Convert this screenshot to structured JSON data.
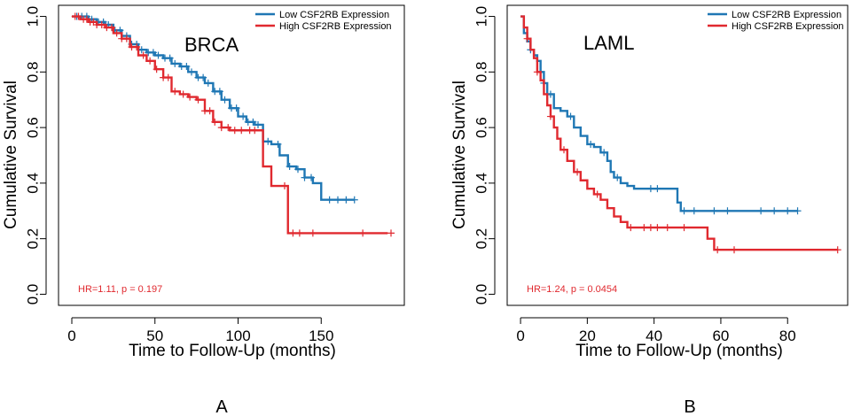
{
  "chart_data": [
    {
      "type": "line",
      "panel_label": "A",
      "title": "BRCA",
      "xlabel": "Time to Follow-Up (months)",
      "ylabel": "Cumulative Survival",
      "xlim": [
        -8,
        200
      ],
      "ylim": [
        -0.04,
        1.04
      ],
      "xticks": [
        0,
        50,
        100,
        150
      ],
      "yticks": [
        0.0,
        0.2,
        0.4,
        0.6,
        0.8,
        1.0
      ],
      "ytick_labels": [
        "0.0",
        "0.2",
        "0.4",
        "0.6",
        "0.8",
        "1.0"
      ],
      "legend_position": "top-right",
      "annotation": "HR=1.11, p = 0.197",
      "series": [
        {
          "name": "Low CSF2RB Expression",
          "color": "#1f77b4",
          "x": [
            0,
            5,
            10,
            15,
            20,
            25,
            30,
            35,
            40,
            45,
            50,
            55,
            60,
            65,
            70,
            75,
            80,
            85,
            90,
            95,
            100,
            105,
            110,
            115,
            120,
            125,
            130,
            135,
            140,
            145,
            150,
            160,
            170
          ],
          "y": [
            1.0,
            1.0,
            0.99,
            0.98,
            0.97,
            0.95,
            0.93,
            0.9,
            0.88,
            0.87,
            0.86,
            0.85,
            0.83,
            0.82,
            0.8,
            0.78,
            0.76,
            0.73,
            0.7,
            0.67,
            0.64,
            0.62,
            0.61,
            0.55,
            0.54,
            0.5,
            0.46,
            0.45,
            0.42,
            0.4,
            0.34,
            0.34,
            0.34
          ],
          "censored_x": [
            3,
            6,
            9,
            12,
            16,
            19,
            22,
            26,
            29,
            33,
            36,
            39,
            42,
            46,
            49,
            52,
            56,
            59,
            62,
            66,
            69,
            72,
            76,
            79,
            82,
            86,
            89,
            92,
            96,
            99,
            103,
            106,
            109,
            112,
            118,
            124,
            131,
            136,
            140,
            144,
            155,
            160,
            165,
            170
          ]
        },
        {
          "name": "High CSF2RB Expression",
          "color": "#e0292f",
          "x": [
            0,
            5,
            10,
            15,
            20,
            25,
            30,
            35,
            40,
            45,
            50,
            55,
            60,
            65,
            70,
            75,
            80,
            85,
            90,
            95,
            100,
            105,
            110,
            115,
            120,
            125,
            130,
            140,
            150,
            170,
            190
          ],
          "y": [
            1.0,
            0.99,
            0.98,
            0.97,
            0.96,
            0.94,
            0.92,
            0.89,
            0.86,
            0.84,
            0.81,
            0.78,
            0.73,
            0.72,
            0.71,
            0.7,
            0.66,
            0.62,
            0.6,
            0.59,
            0.59,
            0.59,
            0.59,
            0.46,
            0.39,
            0.39,
            0.22,
            0.22,
            0.22,
            0.22,
            0.22
          ],
          "censored_x": [
            2,
            4,
            7,
            9,
            11,
            13,
            15,
            18,
            21,
            24,
            27,
            30,
            33,
            36,
            39,
            43,
            47,
            51,
            55,
            58,
            62,
            67,
            71,
            76,
            80,
            83,
            86,
            90,
            94,
            98,
            102,
            107,
            110,
            128,
            133,
            137,
            145,
            175,
            192
          ]
        }
      ]
    },
    {
      "type": "line",
      "panel_label": "B",
      "title": "LAML",
      "xlabel": "Time to Follow-Up (months)",
      "ylabel": "Cumulative Survival",
      "xlim": [
        -4,
        98
      ],
      "ylim": [
        -0.04,
        1.04
      ],
      "xticks": [
        0,
        20,
        40,
        60,
        80
      ],
      "yticks": [
        0.0,
        0.2,
        0.4,
        0.6,
        0.8,
        1.0
      ],
      "ytick_labels": [
        "0.0",
        "0.2",
        "0.4",
        "0.6",
        "0.8",
        "1.0"
      ],
      "legend_position": "top-right",
      "annotation": "HR=1.24, p = 0.0454",
      "series": [
        {
          "name": "Low CSF2RB Expression",
          "color": "#1f77b4",
          "x": [
            0,
            1,
            2,
            3,
            4,
            5,
            6,
            7,
            8,
            10,
            12,
            14,
            16,
            18,
            20,
            22,
            24,
            26,
            27,
            28,
            30,
            32,
            34,
            36,
            40,
            44,
            46,
            47,
            48,
            50,
            60,
            70,
            83
          ],
          "y": [
            1.0,
            0.94,
            0.91,
            0.88,
            0.86,
            0.84,
            0.8,
            0.76,
            0.72,
            0.67,
            0.66,
            0.64,
            0.6,
            0.57,
            0.54,
            0.53,
            0.51,
            0.48,
            0.44,
            0.42,
            0.4,
            0.39,
            0.38,
            0.38,
            0.38,
            0.38,
            0.38,
            0.33,
            0.3,
            0.3,
            0.3,
            0.3,
            0.3
          ],
          "censored_x": [
            3,
            7,
            9,
            15,
            21,
            25,
            29,
            39,
            41,
            49,
            52,
            58,
            62,
            72,
            76,
            80,
            83
          ]
        },
        {
          "name": "High CSF2RB Expression",
          "color": "#e0292f",
          "x": [
            0,
            1,
            2,
            3,
            4,
            5,
            6,
            7,
            8,
            9,
            10,
            11,
            12,
            14,
            16,
            18,
            20,
            22,
            24,
            26,
            28,
            30,
            32,
            36,
            40,
            50,
            54,
            56,
            58,
            60,
            70,
            80,
            95
          ],
          "y": [
            1.0,
            0.96,
            0.92,
            0.88,
            0.85,
            0.8,
            0.77,
            0.72,
            0.68,
            0.64,
            0.6,
            0.56,
            0.52,
            0.48,
            0.44,
            0.41,
            0.38,
            0.36,
            0.34,
            0.31,
            0.28,
            0.26,
            0.24,
            0.24,
            0.24,
            0.24,
            0.24,
            0.2,
            0.16,
            0.16,
            0.16,
            0.16,
            0.16
          ],
          "censored_x": [
            2,
            5,
            9,
            13,
            17,
            23,
            33,
            37,
            39,
            41,
            44,
            49,
            59,
            64,
            95
          ]
        }
      ]
    }
  ]
}
